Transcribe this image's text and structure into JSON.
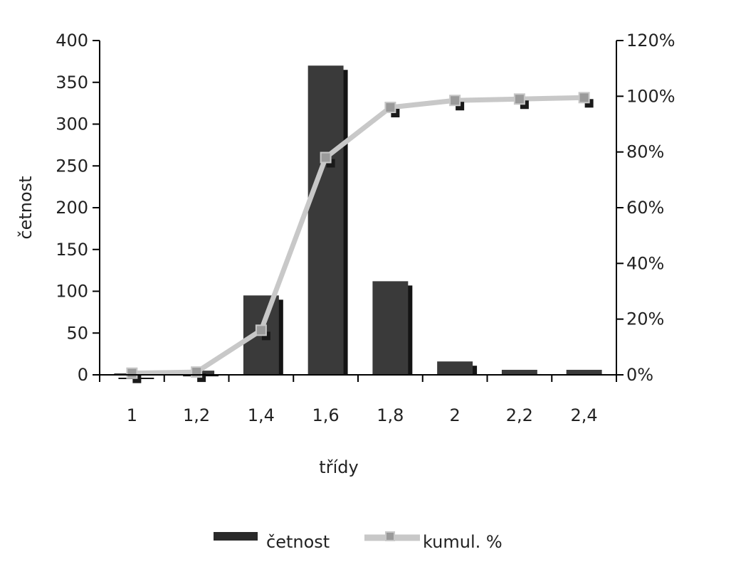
{
  "chart_data": {
    "type": "bar",
    "categories": [
      "1",
      "1,2",
      "1,4",
      "1,6",
      "1,8",
      "2",
      "2,2",
      "2,4"
    ],
    "series": [
      {
        "name": "četnost",
        "type": "bar",
        "axis": "left",
        "values": [
          0,
          5,
          95,
          370,
          112,
          16,
          6,
          6
        ],
        "color": "#3a3a3a"
      },
      {
        "name": "kumul. %",
        "type": "line",
        "axis": "right",
        "values": [
          0.006,
          0.01,
          0.16,
          0.78,
          0.96,
          0.985,
          0.99,
          0.995
        ],
        "color": "#c8c8c8",
        "marker_color": "#9a9a9a"
      }
    ],
    "xlabel": "třídy",
    "ylabel": "četnost",
    "ylim_left": [
      0,
      400
    ],
    "yticks_left": [
      "0",
      "50",
      "100",
      "150",
      "200",
      "250",
      "300",
      "350",
      "400"
    ],
    "ylim_right": [
      0,
      1.2
    ],
    "yticks_right": [
      "0%",
      "20%",
      "40%",
      "60%",
      "80%",
      "100%",
      "120%"
    ],
    "grid": false,
    "legend_position": "bottom"
  }
}
